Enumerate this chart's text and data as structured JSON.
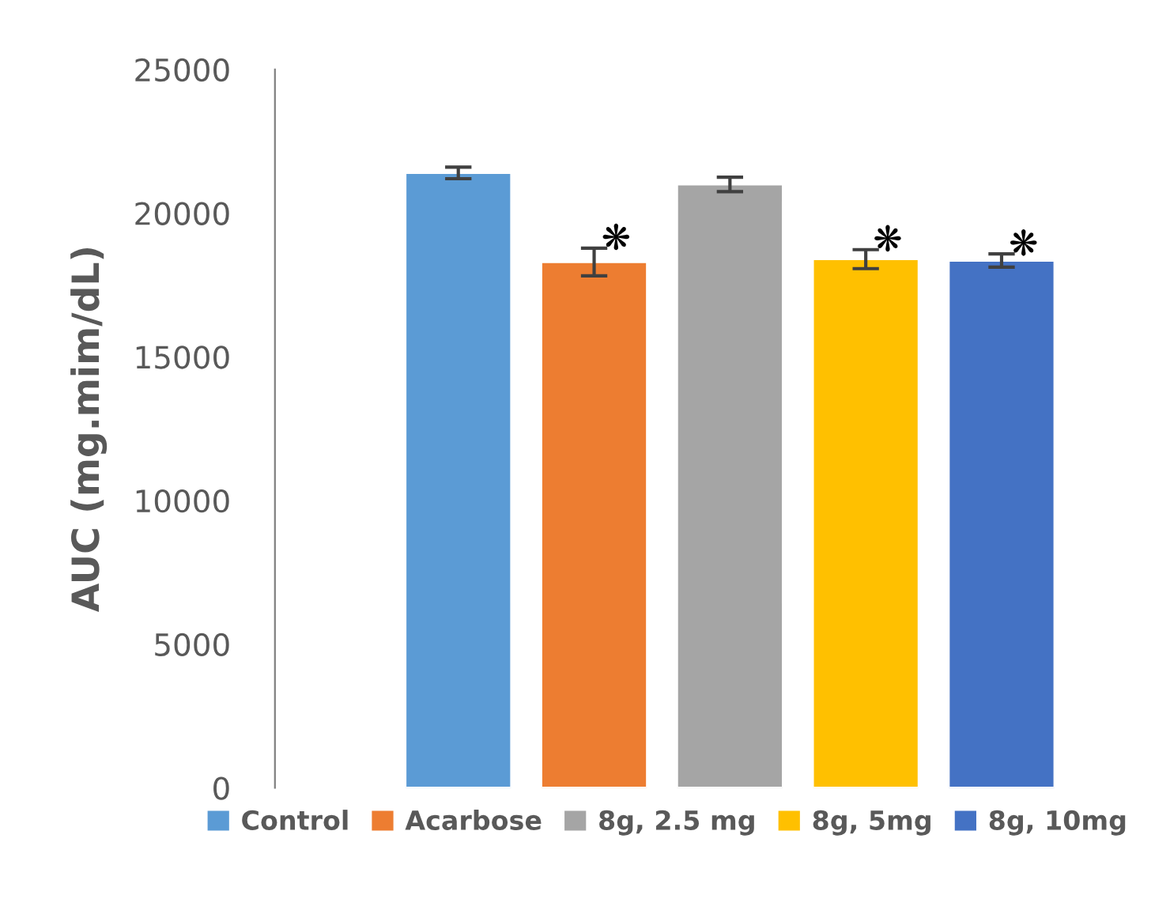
{
  "chart_data": {
    "type": "bar",
    "ylabel": "AUC (mg.mim/dL)",
    "categories": [
      null
    ],
    "series": [
      {
        "name": "Control",
        "color": "#5b9bd5",
        "values": [
          21400
        ],
        "errors": [
          200
        ]
      },
      {
        "name": "Acarbose",
        "color": "#ed7d31",
        "values": [
          18300
        ],
        "errors": [
          480
        ]
      },
      {
        "name": "8g, 2.5 mg",
        "color": "#a5a5a5",
        "values": [
          21000
        ],
        "errors": [
          250
        ]
      },
      {
        "name": "8g, 5mg",
        "color": "#ffc000",
        "values": [
          18400
        ],
        "errors": [
          330
        ]
      },
      {
        "name": "8g, 10mg",
        "color": "#4472c4",
        "values": [
          18350
        ],
        "errors": [
          230
        ]
      }
    ],
    "ylim": [
      0,
      25000
    ],
    "yticks": [
      0,
      5000,
      10000,
      15000,
      20000,
      25000
    ],
    "tick_labels": "y",
    "legend": "bottom",
    "grid": false,
    "annotations": [
      "❋",
      "❋",
      "❋"
    ]
  }
}
